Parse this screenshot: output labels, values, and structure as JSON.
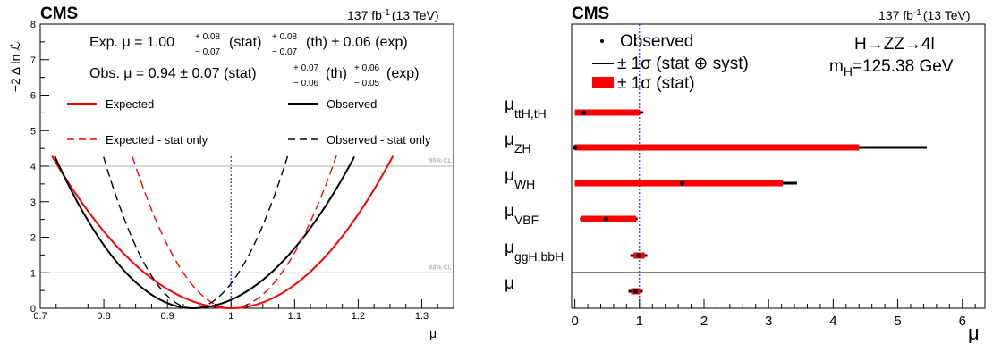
{
  "chart_data": [
    {
      "type": "line",
      "header": {
        "experiment": "CMS",
        "lumi": "137 fb",
        "lumi_exp": "-1",
        "energy": "(13 TeV)"
      },
      "xlabel": "μ",
      "ylabel": "−2 Δ ln ℒ",
      "xlim": [
        0.7,
        1.35
      ],
      "ylim": [
        0,
        8
      ],
      "xticks": [
        "0.7",
        "0.8",
        "0.9",
        "1",
        "1.1",
        "1.2",
        "1.3"
      ],
      "yticks": [
        "0",
        "1",
        "2",
        "3",
        "4",
        "5",
        "6",
        "7",
        "8"
      ],
      "cl_lines": [
        {
          "y": 1,
          "label": "68% CL"
        },
        {
          "y": 4,
          "label": "95% CL"
        }
      ],
      "reference_line_x": 1,
      "annotations": {
        "expected": {
          "prefix": "Exp. μ = 1.00",
          "stat_up": "+ 0.08",
          "stat_dn": "− 0.07",
          "stat": "(stat)",
          "th_up": "+ 0.08",
          "th_dn": "− 0.07",
          "th": "(th) ± 0.06 (exp)"
        },
        "observed": {
          "prefix": "Obs. μ = 0.94 ± 0.07 (stat)",
          "th_up": "+ 0.07",
          "th_dn": "− 0.06",
          "th": "(th)",
          "exp_up": "+ 0.06",
          "exp_dn": "− 0.05",
          "exp": "(exp)"
        }
      },
      "series": [
        {
          "name": "Expected",
          "color": "#ff0000",
          "dashed": false,
          "center": 1.0,
          "sigma_up": 0.123,
          "sigma_dn": 0.136
        },
        {
          "name": "Observed",
          "color": "#000000",
          "dashed": false,
          "center": 0.94,
          "sigma_up": 0.123,
          "sigma_dn": 0.105
        },
        {
          "name": "Expected - stat only",
          "color": "#ff0000",
          "dashed": true,
          "center": 1.0,
          "sigma_up": 0.08,
          "sigma_dn": 0.075
        },
        {
          "name": "Observed - stat only",
          "color": "#000000",
          "dashed": true,
          "center": 0.94,
          "sigma_up": 0.072,
          "sigma_dn": 0.068
        }
      ]
    },
    {
      "type": "scatter",
      "header": {
        "experiment": "CMS",
        "lumi": "137 fb",
        "lumi_exp": "-1",
        "energy": "(13 TeV)"
      },
      "xlabel": "μ",
      "xlim": [
        -0.05,
        6.35
      ],
      "xticks": [
        "0",
        "1",
        "2",
        "3",
        "4",
        "5",
        "6"
      ],
      "process": "H→ZZ→4l",
      "mass": "m",
      "mass_sub": "H",
      "mass_val": "=125.38 GeV",
      "legend": [
        "Observed",
        "± 1σ (stat ⊕ syst)",
        "± 1σ (stat)"
      ],
      "reference_line_x": 1,
      "categories": [
        {
          "label": "μ",
          "sub": "ttH,tH",
          "value": 0.14,
          "stat": [
            0.0,
            1.0
          ],
          "total": [
            0.0,
            1.06
          ]
        },
        {
          "label": "μ",
          "sub": "ZH",
          "value": 0.0,
          "stat": [
            0.0,
            4.4
          ],
          "total": [
            0.0,
            5.45
          ]
        },
        {
          "label": "μ",
          "sub": "WH",
          "value": 1.66,
          "stat": [
            0.0,
            3.22
          ],
          "total": [
            0.0,
            3.44
          ]
        },
        {
          "label": "μ",
          "sub": "VBF",
          "value": 0.48,
          "stat": [
            0.1,
            0.95
          ],
          "total": [
            0.08,
            0.97
          ]
        },
        {
          "label": "μ",
          "sub": "ggH,bbH",
          "value": 0.99,
          "stat": [
            0.91,
            1.08
          ],
          "total": [
            0.86,
            1.12
          ]
        },
        {
          "label": "μ",
          "sub": "",
          "value": 0.94,
          "stat": [
            0.87,
            1.01
          ],
          "total": [
            0.83,
            1.05
          ]
        }
      ]
    }
  ]
}
